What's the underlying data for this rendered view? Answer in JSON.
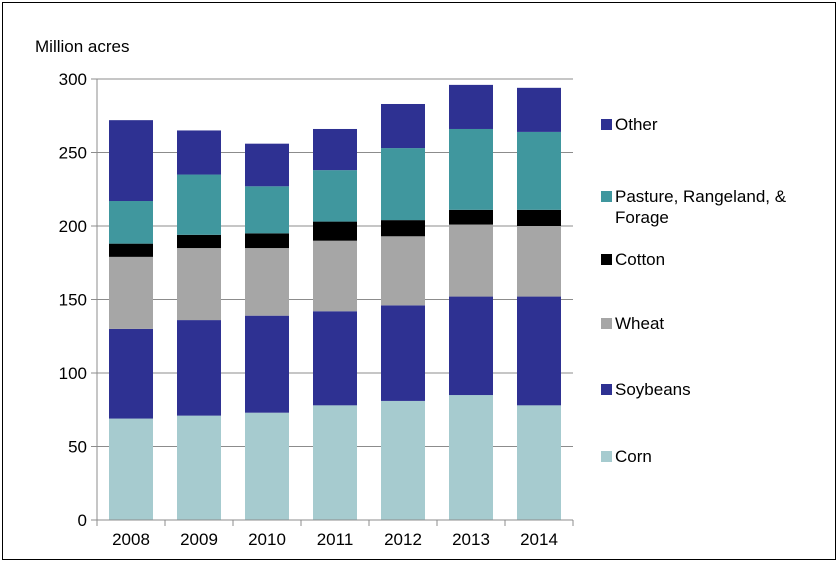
{
  "chart_data": {
    "type": "bar",
    "stacked": true,
    "title": "",
    "ylabel": "Million acres",
    "xlabel": "",
    "ylim": [
      0,
      300
    ],
    "yticks": [
      0,
      50,
      100,
      150,
      200,
      250,
      300
    ],
    "grid": true,
    "legend_position": "right",
    "categories": [
      "2008",
      "2009",
      "2010",
      "2011",
      "2012",
      "2013",
      "2014"
    ],
    "series": [
      {
        "name": "Corn",
        "color": "#a6cbcf",
        "values": [
          69,
          71,
          73,
          78,
          81,
          85,
          78
        ]
      },
      {
        "name": "Soybeans",
        "color": "#2e3192",
        "values": [
          61,
          65,
          66,
          64,
          65,
          67,
          74
        ]
      },
      {
        "name": "Wheat",
        "color": "#a6a6a6",
        "values": [
          49,
          49,
          46,
          48,
          47,
          49,
          48
        ]
      },
      {
        "name": "Cotton",
        "color": "#000000",
        "values": [
          9,
          9,
          10,
          13,
          11,
          10,
          11
        ]
      },
      {
        "name": "Pasture, Rangeland, & Forage",
        "color": "#40979e",
        "values": [
          29,
          41,
          32,
          35,
          49,
          55,
          53
        ]
      },
      {
        "name": "Other",
        "color": "#2e3192",
        "values": [
          55,
          30,
          29,
          28,
          30,
          30,
          30
        ]
      }
    ]
  }
}
